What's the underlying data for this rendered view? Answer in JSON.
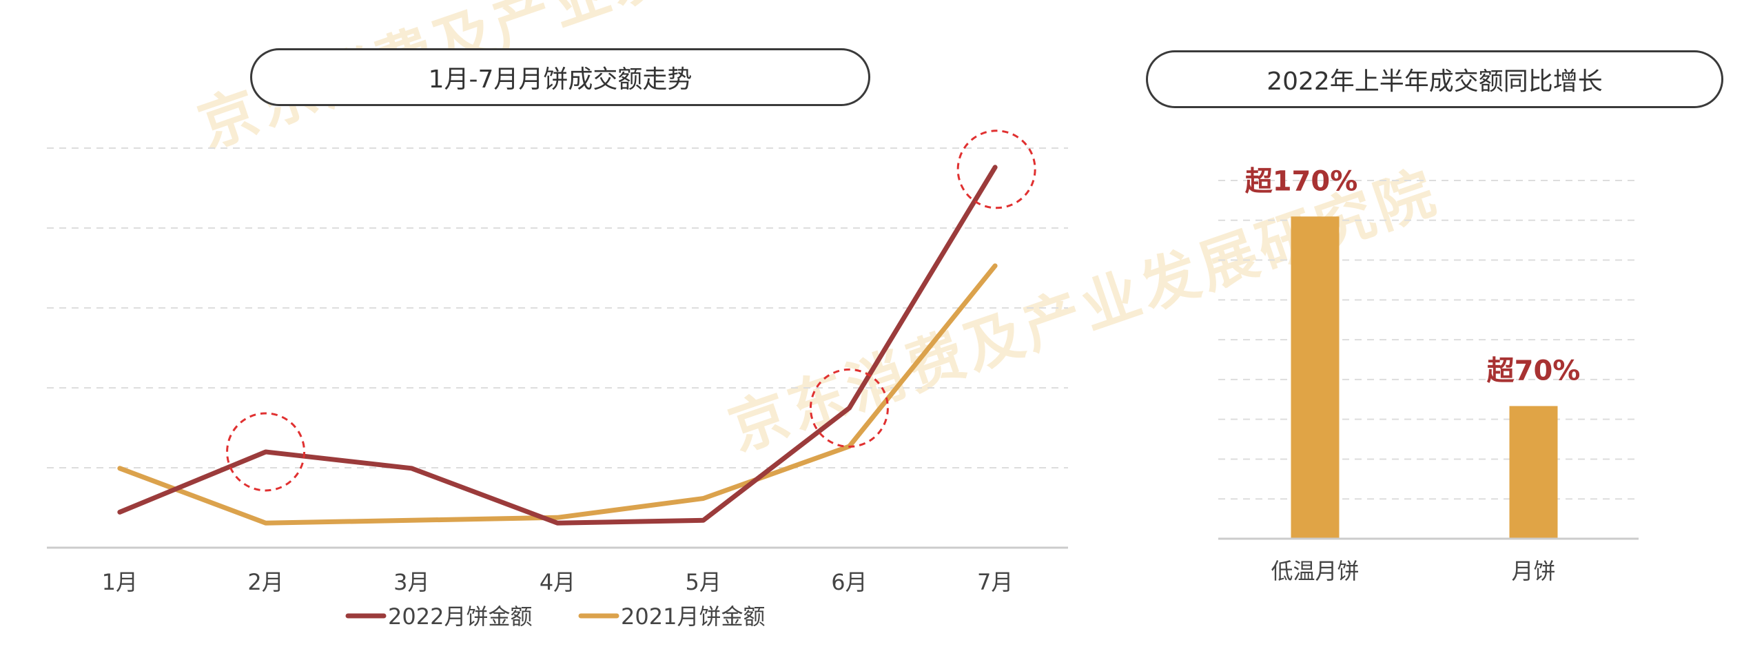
{
  "watermark": "京东消费及产业发展研究院",
  "left_chart": {
    "title": "1月-7月月饼成交额走势",
    "highlight_months": [
      "2月",
      "6月",
      "7月"
    ]
  },
  "right_chart": {
    "title": "2022年上半年成交额同比增长"
  },
  "colors": {
    "series_2022": "#9b3b3b",
    "series_2021": "#dba24c",
    "bar": "#e0a446",
    "bar_label": "#a83232",
    "highlight_circle": "#e03030",
    "grid": "#dddddd"
  },
  "chart_data": [
    {
      "type": "line",
      "title": "1月-7月月饼成交额走势",
      "categories": [
        "1月",
        "2月",
        "3月",
        "4月",
        "5月",
        "6月",
        "7月"
      ],
      "series": [
        {
          "name": "2022月饼金额",
          "values": [
            5,
            27,
            21,
            1,
            2,
            43,
            131
          ]
        },
        {
          "name": "2021月饼金额",
          "values": [
            21,
            1,
            2,
            3,
            10,
            29,
            95
          ]
        }
      ],
      "ylim": [
        -8,
        138
      ],
      "legend": "bottom",
      "grid": true,
      "y_axis_labels": false
    },
    {
      "type": "bar",
      "title": "2022年上半年成交额同比增长",
      "categories": [
        "低温月饼",
        "月饼"
      ],
      "values": [
        170,
        70
      ],
      "data_labels": [
        "超170%",
        "超70%"
      ],
      "ylim": [
        0,
        189
      ],
      "grid": true,
      "y_axis_labels": false
    }
  ]
}
